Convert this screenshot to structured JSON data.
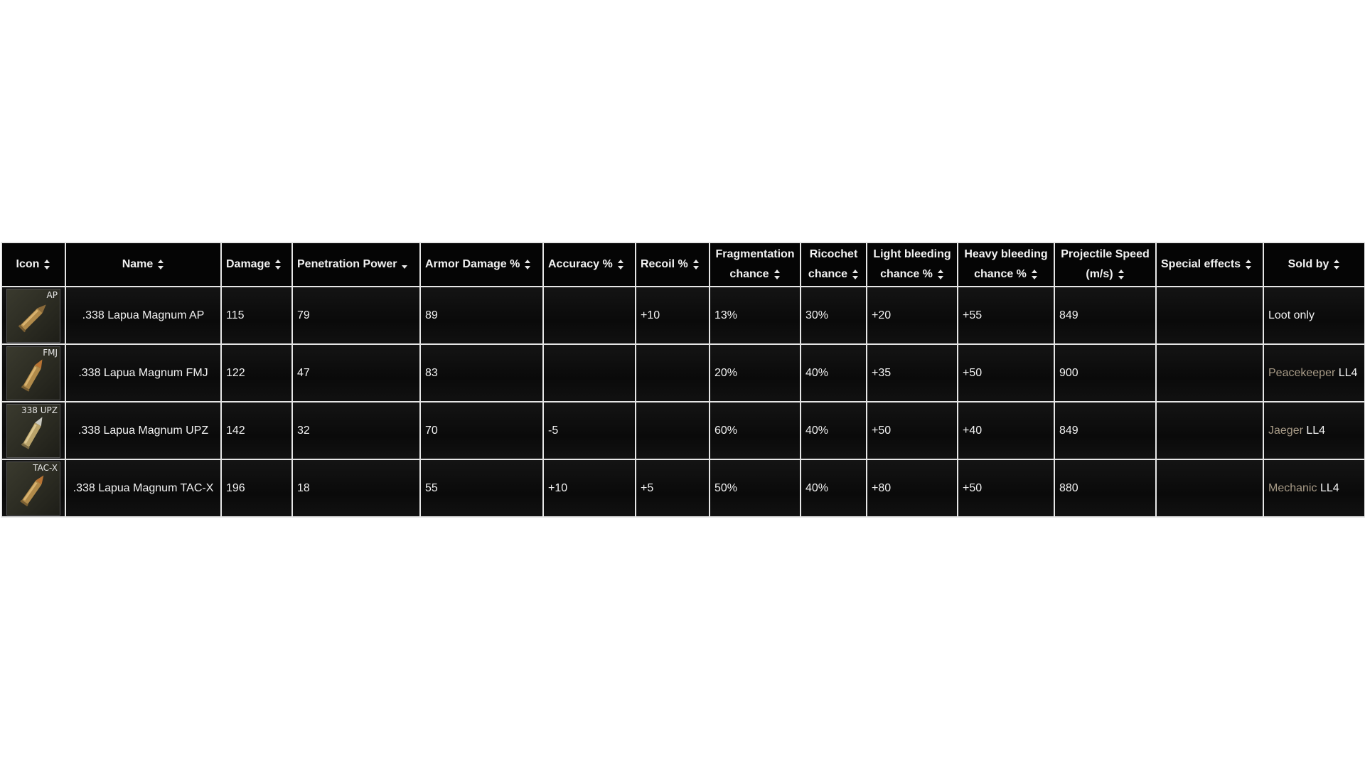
{
  "table": {
    "columns": [
      {
        "label": "Icon",
        "sort": "both"
      },
      {
        "label": "Name",
        "sort": "both"
      },
      {
        "label": "Damage",
        "sort": "both"
      },
      {
        "label": "Penetration Power",
        "sort": "desc"
      },
      {
        "label": "Armor Damage %",
        "sort": "both"
      },
      {
        "label": "Accuracy %",
        "sort": "both"
      },
      {
        "label": "Recoil %",
        "sort": "both"
      },
      {
        "label_line1": "Fragmentation",
        "label_line2": "chance",
        "sort": "both"
      },
      {
        "label_line1": "Ricochet",
        "label_line2": "chance",
        "sort": "both"
      },
      {
        "label_line1": "Light bleeding",
        "label_line2": "chance %",
        "sort": "both"
      },
      {
        "label_line1": "Heavy bleeding",
        "label_line2": "chance %",
        "sort": "both"
      },
      {
        "label_line1": "Projectile Speed",
        "label_line2": "(m/s)",
        "sort": "both"
      },
      {
        "label": "Special effects",
        "sort": "both"
      },
      {
        "label": "Sold by",
        "sort": "both"
      }
    ],
    "rows": [
      {
        "icon_tag": "AP",
        "name": ".338 Lapua Magnum AP",
        "damage": "115",
        "penetration": "79",
        "armor_damage": "89",
        "accuracy": "",
        "recoil": "+10",
        "fragmentation": "13%",
        "ricochet": "30%",
        "light_bleed": "+20",
        "heavy_bleed": "+55",
        "speed": "849",
        "special": "",
        "sold_by_trader": "",
        "sold_by_level": "Loot only"
      },
      {
        "icon_tag": "FMJ",
        "name": ".338 Lapua Magnum FMJ",
        "damage": "122",
        "penetration": "47",
        "armor_damage": "83",
        "accuracy": "",
        "recoil": "",
        "fragmentation": "20%",
        "ricochet": "40%",
        "light_bleed": "+35",
        "heavy_bleed": "+50",
        "speed": "900",
        "special": "",
        "sold_by_trader": "Peacekeeper",
        "sold_by_level": "LL4"
      },
      {
        "icon_tag": "338 UPZ",
        "name": ".338 Lapua Magnum UPZ",
        "damage": "142",
        "penetration": "32",
        "armor_damage": "70",
        "accuracy": "-5",
        "recoil": "",
        "fragmentation": "60%",
        "ricochet": "40%",
        "light_bleed": "+50",
        "heavy_bleed": "+40",
        "speed": "849",
        "special": "",
        "sold_by_trader": "Jaeger",
        "sold_by_level": "LL4"
      },
      {
        "icon_tag": "TAC-X",
        "name": ".338 Lapua Magnum TAC-X",
        "damage": "196",
        "penetration": "18",
        "armor_damage": "55",
        "accuracy": "+10",
        "recoil": "+5",
        "fragmentation": "50%",
        "ricochet": "40%",
        "light_bleed": "+80",
        "heavy_bleed": "+50",
        "speed": "880",
        "special": "",
        "sold_by_trader": "Mechanic",
        "sold_by_level": "LL4"
      }
    ]
  },
  "colors": {
    "negative": "#d01616",
    "positive": "#2f9a2f",
    "link": "#a79a86"
  }
}
